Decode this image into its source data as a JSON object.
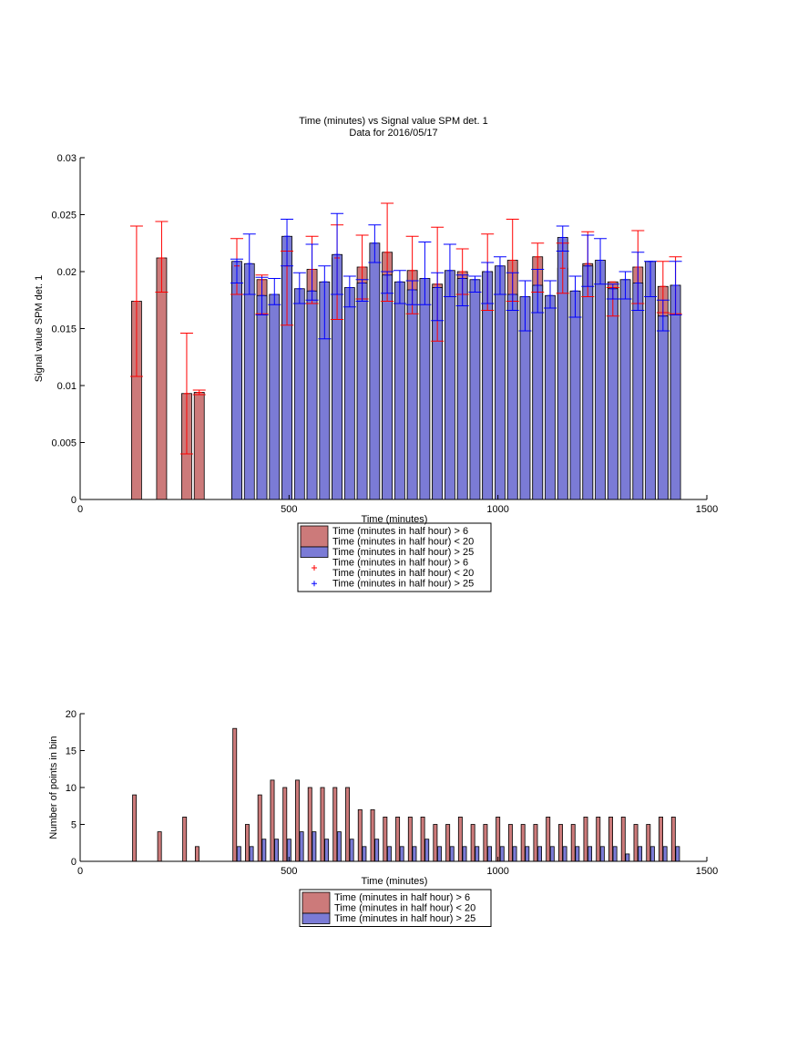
{
  "chart_data": [
    {
      "type": "bar",
      "title": "Time (minutes) vs Signal value SPM det. 1",
      "subtitle": "Data for 2016/05/17",
      "xlabel": "Time (minutes)",
      "ylabel": "Signal value SPM det. 1",
      "xlim": [
        0,
        1500
      ],
      "ylim": [
        0,
        0.03
      ],
      "xticks": [
        "0",
        "500",
        "1000",
        "1500"
      ],
      "yticks": [
        "0",
        "0.005",
        "0.01",
        "0.015",
        "0.02",
        "0.025",
        "0.03"
      ],
      "legend": {
        "placement": "below",
        "entries": [
          {
            "kind": "bar",
            "color": "#cc7a7a",
            "label": "Time (minutes in half hour) > 6\nTime (minutes in half hour) < 20"
          },
          {
            "kind": "bar",
            "color": "#7b7bd6",
            "label": "Time (minutes in half hour) > 25"
          },
          {
            "kind": "marker",
            "color": "#ff0000",
            "label": "Time (minutes in half hour) > 6\nTime (minutes in half hour) < 20"
          },
          {
            "kind": "marker",
            "color": "#0000ff",
            "label": "Time (minutes in half hour) > 25"
          }
        ]
      },
      "bar_width": 24,
      "series": [
        {
          "color": "#cc7a7a",
          "err_color": "#ff0000",
          "x": [
            135,
            195,
            255,
            285,
            375,
            435,
            495,
            555,
            615,
            675,
            735,
            795,
            855,
            915,
            975,
            1035,
            1095,
            1155,
            1215,
            1275,
            1335,
            1395,
            1425
          ],
          "values": [
            0.0174,
            0.0212,
            0.0093,
            0.0094,
            0.0205,
            0.0193,
            0.0205,
            0.0202,
            0.0212,
            0.0204,
            0.0217,
            0.0201,
            0.0189,
            0.02,
            0.02,
            0.021,
            0.0213,
            0.0203,
            0.0207,
            0.0191,
            0.0204,
            0.0187,
            0.0188
          ],
          "err_low": [
            0.0108,
            0.0182,
            0.004,
            0.0092,
            0.018,
            0.0163,
            0.0153,
            0.0172,
            0.0158,
            0.0176,
            0.0174,
            0.0163,
            0.0139,
            0.018,
            0.0166,
            0.0174,
            0.0182,
            0.0181,
            0.0178,
            0.0161,
            0.0172,
            0.0164,
            0.0163
          ],
          "err_high": [
            0.024,
            0.0244,
            0.0146,
            0.0096,
            0.0229,
            0.0197,
            0.0218,
            0.0231,
            0.0241,
            0.0232,
            0.026,
            0.0231,
            0.0239,
            0.022,
            0.0233,
            0.0246,
            0.0225,
            0.0225,
            0.0235,
            0.0186,
            0.0236,
            0.0209,
            0.0213
          ]
        },
        {
          "color": "#7b7bd6",
          "err_color": "#0000ff",
          "x": [
            375,
            405,
            435,
            465,
            495,
            525,
            555,
            585,
            615,
            645,
            675,
            705,
            735,
            765,
            795,
            825,
            855,
            885,
            915,
            945,
            975,
            1005,
            1035,
            1065,
            1095,
            1125,
            1155,
            1185,
            1215,
            1245,
            1275,
            1305,
            1335,
            1365,
            1395,
            1425
          ],
          "values": [
            0.0209,
            0.0207,
            0.0179,
            0.018,
            0.0231,
            0.0185,
            0.0183,
            0.0191,
            0.0215,
            0.0186,
            0.019,
            0.0225,
            0.0197,
            0.0191,
            0.0184,
            0.0194,
            0.0186,
            0.0201,
            0.0194,
            0.0193,
            0.02,
            0.0205,
            0.018,
            0.0178,
            0.0188,
            0.0179,
            0.023,
            0.0183,
            0.0205,
            0.021,
            0.0185,
            0.0193,
            0.019,
            0.0209,
            0.0161,
            0.0188
          ],
          "err_low": [
            0.019,
            0.018,
            0.0162,
            0.0171,
            0.0205,
            0.0172,
            0.0175,
            0.0141,
            0.018,
            0.0169,
            0.0174,
            0.0208,
            0.0181,
            0.0172,
            0.0171,
            0.0171,
            0.0157,
            0.0178,
            0.017,
            0.0182,
            0.0172,
            0.018,
            0.0166,
            0.0148,
            0.0164,
            0.0168,
            0.0218,
            0.016,
            0.0187,
            0.0189,
            0.0176,
            0.0176,
            0.0166,
            0.0178,
            0.0148,
            0.0162
          ],
          "err_high": [
            0.0211,
            0.0233,
            0.0195,
            0.0194,
            0.0246,
            0.0199,
            0.0224,
            0.0205,
            0.0251,
            0.0196,
            0.0193,
            0.0241,
            0.02,
            0.0201,
            0.0192,
            0.0226,
            0.0199,
            0.0224,
            0.0197,
            0.0196,
            0.0208,
            0.0213,
            0.0199,
            0.0192,
            0.0202,
            0.0192,
            0.024,
            0.0196,
            0.0232,
            0.0229,
            0.0189,
            0.02,
            0.0217,
            0.0209,
            0.0175,
            0.0209
          ]
        }
      ]
    },
    {
      "type": "bar",
      "xlabel": "Time (minutes)",
      "ylabel": "Number of points in bin",
      "xlim": [
        0,
        1500
      ],
      "ylim": [
        0,
        20
      ],
      "xticks": [
        "0",
        "500",
        "1000",
        "1500"
      ],
      "yticks": [
        "0",
        "5",
        "10",
        "15",
        "20"
      ],
      "legend": {
        "placement": "below",
        "entries": [
          {
            "kind": "bar",
            "color": "#cc7a7a",
            "label": "Time (minutes in half hour) > 6\nTime (minutes in half hour) < 20"
          },
          {
            "kind": "bar",
            "color": "#7b7bd6",
            "label": "Time (minutes in half hour) > 25"
          }
        ]
      },
      "bar_width": 9,
      "series": [
        {
          "color": "#cc7a7a",
          "x": [
            130,
            190,
            250,
            280,
            370,
            400,
            430,
            460,
            490,
            520,
            550,
            580,
            610,
            640,
            670,
            700,
            730,
            760,
            790,
            820,
            850,
            880,
            910,
            940,
            970,
            1000,
            1030,
            1060,
            1090,
            1120,
            1150,
            1180,
            1210,
            1240,
            1270,
            1300,
            1330,
            1360,
            1390,
            1420
          ],
          "values": [
            9,
            4,
            6,
            2,
            18,
            5,
            9,
            11,
            10,
            11,
            10,
            10,
            10,
            10,
            7,
            7,
            6,
            6,
            6,
            6,
            5,
            5,
            6,
            5,
            5,
            6,
            5,
            5,
            5,
            6,
            5,
            5,
            6,
            6,
            6,
            6,
            5,
            5,
            6,
            6
          ]
        },
        {
          "color": "#7b7bd6",
          "x": [
            380,
            410,
            440,
            470,
            500,
            530,
            560,
            590,
            620,
            650,
            680,
            710,
            740,
            770,
            800,
            830,
            860,
            890,
            920,
            950,
            980,
            1010,
            1040,
            1070,
            1100,
            1130,
            1160,
            1190,
            1220,
            1250,
            1280,
            1310,
            1340,
            1370,
            1400,
            1430
          ],
          "values": [
            2,
            2,
            3,
            3,
            3,
            4,
            4,
            3,
            4,
            3,
            2,
            3,
            2,
            2,
            2,
            3,
            2,
            2,
            2,
            2,
            2,
            2,
            2,
            2,
            2,
            2,
            2,
            2,
            2,
            2,
            2,
            1,
            2,
            2,
            2,
            2
          ]
        }
      ]
    }
  ]
}
